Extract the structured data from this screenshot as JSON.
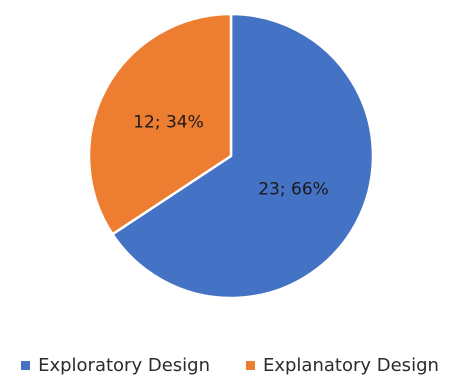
{
  "chart_data": {
    "type": "pie",
    "title": "",
    "slices": [
      {
        "name": "Exploratory Design",
        "value": 23,
        "percent": 66,
        "label": "23; 66%",
        "color": "#4472C4"
      },
      {
        "name": "Explanatory Design",
        "value": 12,
        "percent": 34,
        "label": "12; 34%",
        "color": "#ED7D31"
      }
    ],
    "start_angle": "12 o'clock",
    "direction": "clockwise",
    "legend_position": "bottom"
  }
}
